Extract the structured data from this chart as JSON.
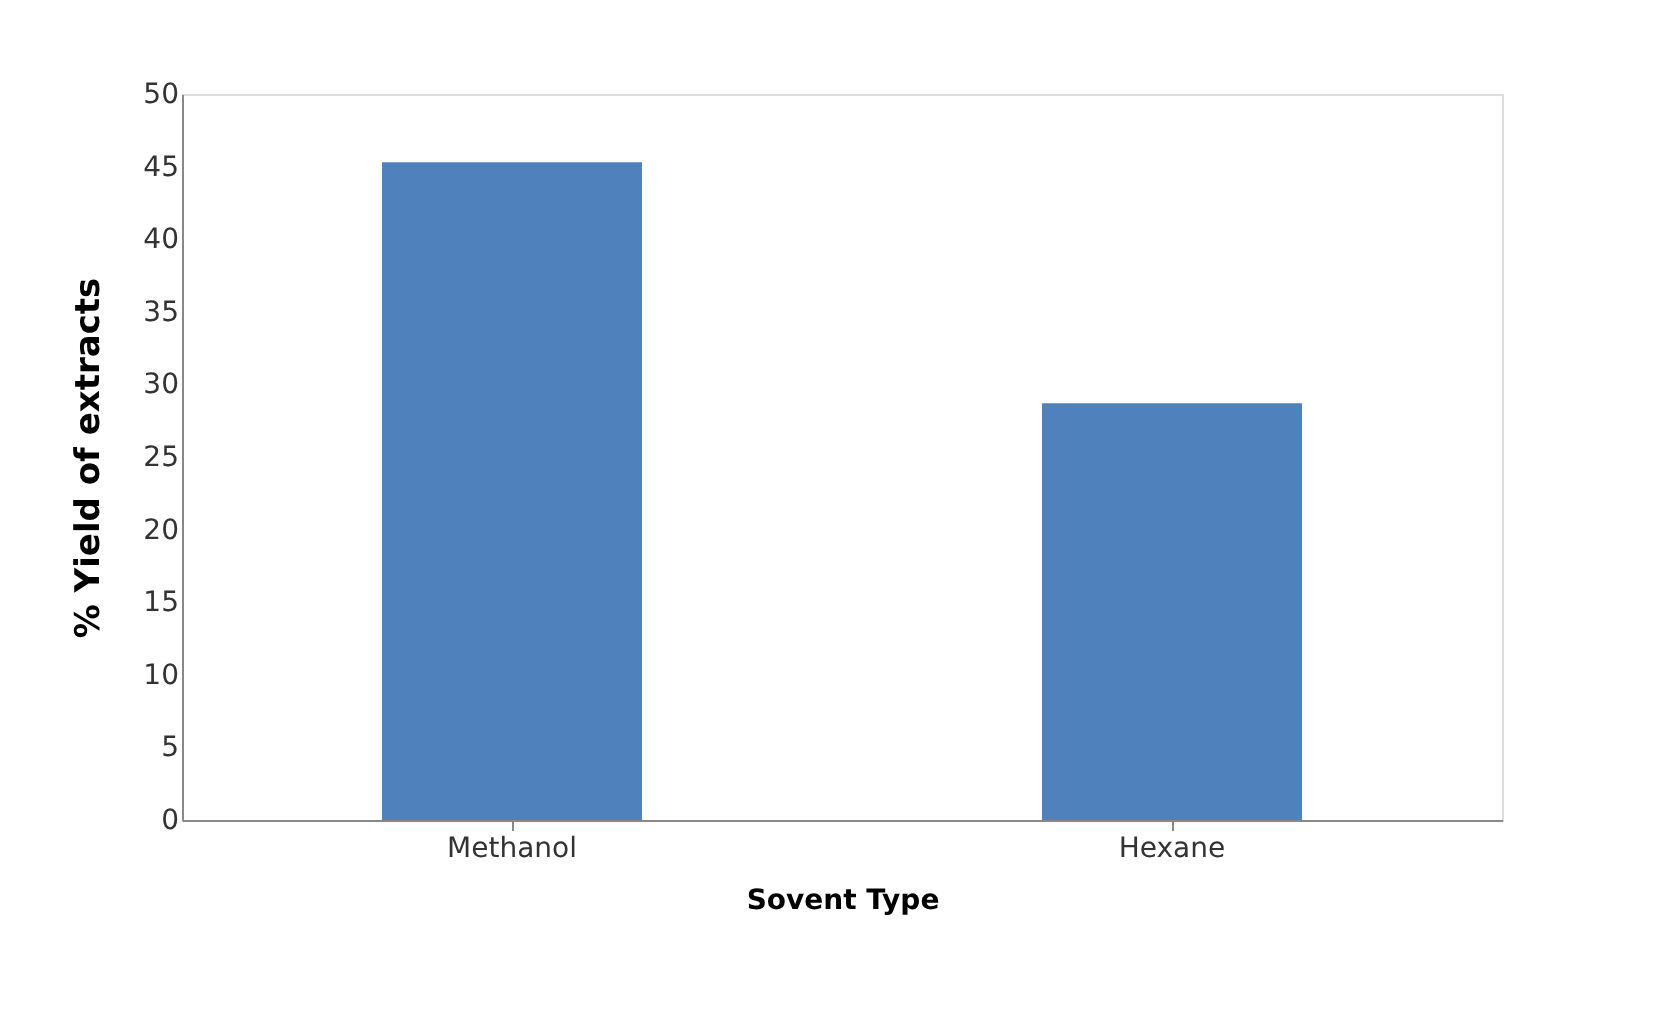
{
  "chart_data": {
    "type": "bar",
    "xlabel": "Sovent Type",
    "ylabel": "% Yield of extracts",
    "categories": [
      "Methanol",
      "Hexane"
    ],
    "values": [
      45.3,
      28.7
    ],
    "color": "#4f81bd",
    "ylim": [
      0,
      50
    ],
    "yticks": [
      0,
      5,
      10,
      15,
      20,
      25,
      30,
      35,
      40,
      45,
      50
    ],
    "grid": false
  }
}
